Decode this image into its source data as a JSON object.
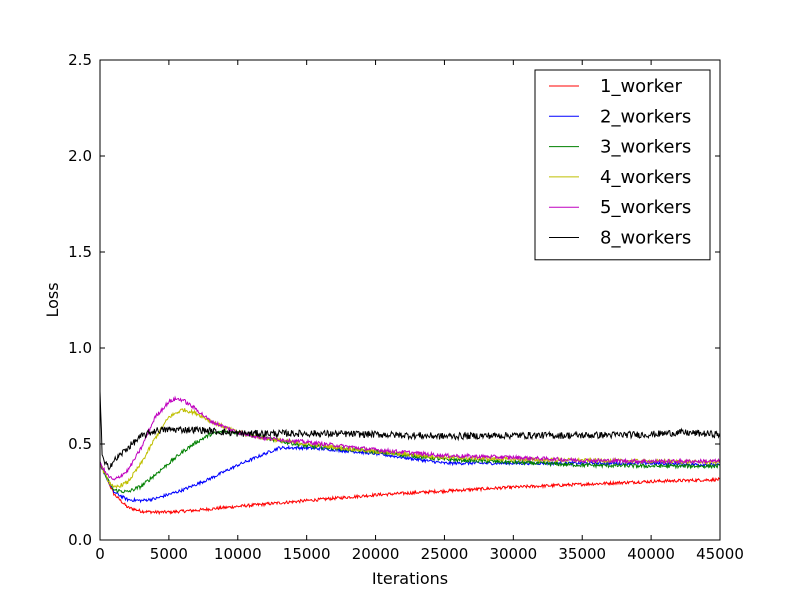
{
  "chart_data": {
    "type": "line",
    "title": "",
    "xlabel": "Iterations",
    "ylabel": "Loss",
    "xlim": [
      0,
      45000
    ],
    "ylim": [
      0.0,
      2.5
    ],
    "xticks": [
      0,
      5000,
      10000,
      15000,
      20000,
      25000,
      30000,
      35000,
      40000,
      45000
    ],
    "xtick_labels": [
      "0",
      "5000",
      "10000",
      "15000",
      "20000",
      "25000",
      "30000",
      "35000",
      "40000",
      "45000"
    ],
    "yticks": [
      0.0,
      0.5,
      1.0,
      1.5,
      2.0,
      2.5
    ],
    "ytick_labels": [
      "0.0",
      "0.5",
      "1.0",
      "1.5",
      "2.0",
      "2.5"
    ],
    "grid": false,
    "legend_position": "top-right",
    "series": [
      {
        "name": "1_worker",
        "color": "#ff0000",
        "noise": 0.008,
        "x": [
          0,
          500,
          1000,
          2000,
          3000,
          4000,
          5000,
          7000,
          10000,
          15000,
          20000,
          25000,
          30000,
          35000,
          40000,
          45000
        ],
        "y": [
          0.4,
          0.32,
          0.24,
          0.17,
          0.15,
          0.145,
          0.145,
          0.155,
          0.175,
          0.205,
          0.235,
          0.255,
          0.275,
          0.29,
          0.305,
          0.315
        ]
      },
      {
        "name": "2_workers",
        "color": "#0000ff",
        "noise": 0.008,
        "x": [
          0,
          500,
          1000,
          2000,
          3000,
          4000,
          6000,
          8000,
          10000,
          12000,
          13000,
          15000,
          17000,
          20000,
          25000,
          30000,
          35000,
          40000,
          45000
        ],
        "y": [
          0.4,
          0.32,
          0.25,
          0.21,
          0.205,
          0.215,
          0.26,
          0.32,
          0.39,
          0.45,
          0.48,
          0.48,
          0.47,
          0.45,
          0.4,
          0.4,
          0.4,
          0.4,
          0.39
        ]
      },
      {
        "name": "3_workers",
        "color": "#008000",
        "noise": 0.01,
        "x": [
          0,
          500,
          1000,
          2000,
          3000,
          4000,
          5000,
          6000,
          7000,
          8000,
          9000,
          10000,
          12000,
          15000,
          20000,
          25000,
          30000,
          35000,
          40000,
          45000
        ],
        "y": [
          0.4,
          0.32,
          0.26,
          0.25,
          0.28,
          0.34,
          0.4,
          0.46,
          0.51,
          0.55,
          0.565,
          0.56,
          0.53,
          0.49,
          0.46,
          0.42,
          0.405,
          0.39,
          0.385,
          0.385
        ]
      },
      {
        "name": "4_workers",
        "color": "#bfbf00",
        "noise": 0.01,
        "x": [
          0,
          500,
          1000,
          2000,
          3000,
          4000,
          5000,
          6000,
          7000,
          8000,
          10000,
          12000,
          15000,
          20000,
          25000,
          30000,
          35000,
          40000,
          45000
        ],
        "y": [
          0.4,
          0.32,
          0.27,
          0.3,
          0.4,
          0.53,
          0.64,
          0.68,
          0.66,
          0.62,
          0.56,
          0.53,
          0.5,
          0.46,
          0.43,
          0.42,
          0.415,
          0.41,
          0.405
        ]
      },
      {
        "name": "5_workers",
        "color": "#bf00bf",
        "noise": 0.01,
        "x": [
          0,
          500,
          1000,
          2000,
          3000,
          4000,
          5000,
          5500,
          6000,
          7000,
          8000,
          10000,
          12000,
          15000,
          20000,
          25000,
          30000,
          35000,
          40000,
          45000
        ],
        "y": [
          0.4,
          0.34,
          0.31,
          0.36,
          0.48,
          0.64,
          0.72,
          0.735,
          0.73,
          0.68,
          0.62,
          0.56,
          0.53,
          0.51,
          0.47,
          0.44,
          0.43,
          0.415,
          0.41,
          0.41
        ]
      },
      {
        "name": "8_workers",
        "color": "#000000",
        "noise": 0.018,
        "x": [
          0,
          150,
          300,
          600,
          1000,
          2000,
          3000,
          4000,
          5000,
          7000,
          10000,
          15000,
          20000,
          25000,
          30000,
          35000,
          40000,
          42000,
          45000
        ],
        "y": [
          0.78,
          0.45,
          0.4,
          0.38,
          0.41,
          0.48,
          0.54,
          0.57,
          0.575,
          0.575,
          0.555,
          0.555,
          0.55,
          0.54,
          0.545,
          0.545,
          0.55,
          0.56,
          0.55
        ]
      }
    ]
  }
}
